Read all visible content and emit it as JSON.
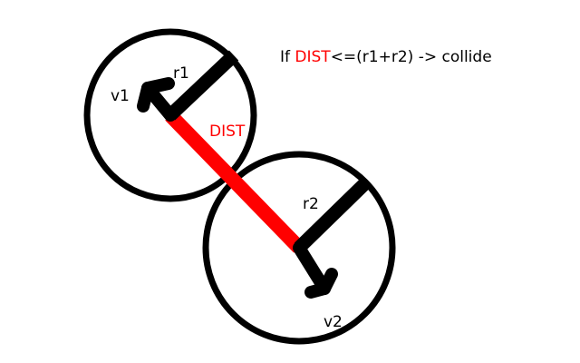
{
  "formula": {
    "prefix": "If ",
    "highlight": "DIST",
    "suffix": "<=(r1+r2) -> collide"
  },
  "labels": {
    "r1": "r1",
    "v1": "v1",
    "dist": "DIST",
    "r2": "r2",
    "v2": "v2"
  },
  "colors": {
    "outline": "#000000",
    "distance_line": "#ff0000",
    "highlight_text": "#ff0000",
    "background": "#ffffff"
  }
}
